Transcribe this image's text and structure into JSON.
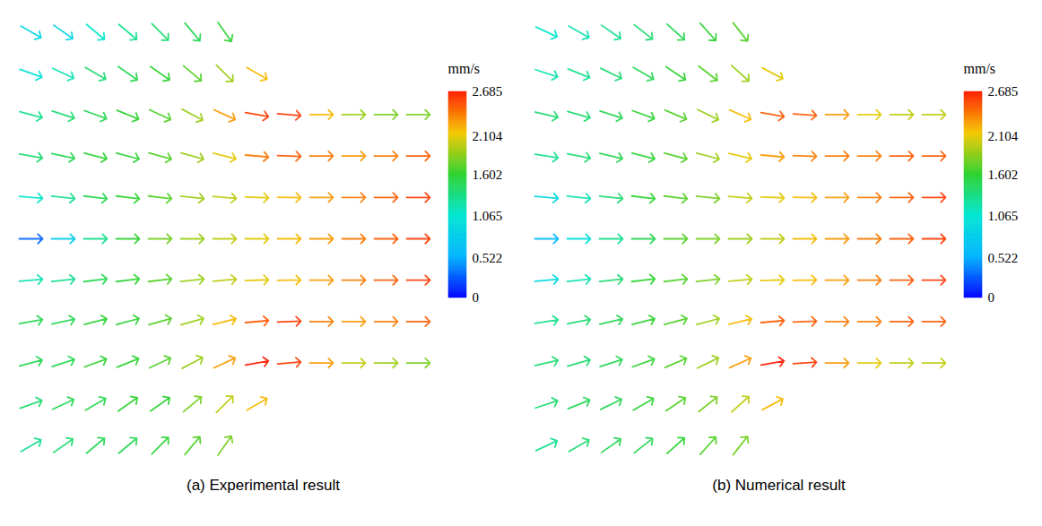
{
  "chart_data": [
    {
      "type": "vector_field",
      "title": "(a) Experimental result",
      "tick_labels": false,
      "x": [
        0.5,
        1.5,
        2.5,
        3.5,
        4.5,
        5.5,
        6.5,
        7.5,
        8.5,
        9.5,
        10.5,
        11.5,
        12.5
      ],
      "y": [
        10.5,
        9.5,
        8.5,
        7.5,
        6.5,
        5.5,
        4.5,
        3.5,
        2.5,
        1.5,
        0.5
      ],
      "xlim": [
        0,
        13
      ],
      "ylim": [
        0,
        11
      ],
      "speed": [
        [
          0.9,
          0.9,
          1.1,
          1.3,
          1.4,
          1.5,
          1.6,
          null,
          null,
          null,
          null,
          null,
          null
        ],
        [
          1.0,
          1.2,
          1.4,
          1.5,
          1.6,
          1.7,
          1.9,
          2.2,
          null,
          null,
          null,
          null,
          null
        ],
        [
          1.3,
          1.4,
          1.5,
          1.6,
          1.7,
          1.9,
          2.3,
          2.6,
          2.6,
          2.2,
          1.9,
          1.8,
          1.8
        ],
        [
          1.4,
          1.5,
          1.6,
          1.6,
          1.7,
          1.9,
          2.1,
          2.4,
          2.5,
          2.4,
          2.3,
          2.4,
          2.5
        ],
        [
          1.1,
          1.3,
          1.5,
          1.6,
          1.7,
          1.9,
          2.0,
          2.1,
          2.2,
          2.3,
          2.4,
          2.5,
          2.6
        ],
        [
          0.3,
          0.8,
          1.3,
          1.6,
          1.8,
          1.9,
          2.0,
          2.1,
          2.2,
          2.3,
          2.4,
          2.5,
          2.6
        ],
        [
          1.2,
          1.3,
          1.5,
          1.6,
          1.7,
          1.9,
          2.0,
          2.1,
          2.2,
          2.3,
          2.4,
          2.5,
          2.6
        ],
        [
          1.5,
          1.5,
          1.6,
          1.6,
          1.7,
          1.9,
          2.2,
          2.5,
          2.6,
          2.4,
          2.3,
          2.4,
          2.5
        ],
        [
          1.5,
          1.5,
          1.6,
          1.6,
          1.7,
          1.9,
          2.3,
          2.7,
          2.6,
          2.3,
          2.0,
          1.9,
          1.8
        ],
        [
          1.4,
          1.5,
          1.5,
          1.6,
          1.6,
          1.8,
          2.0,
          2.2,
          null,
          null,
          null,
          null,
          null
        ],
        [
          1.3,
          1.4,
          1.5,
          1.5,
          1.6,
          1.7,
          1.8,
          null,
          null,
          null,
          null,
          null,
          null
        ]
      ],
      "direction": [
        [
          120,
          125,
          130,
          130,
          135,
          140,
          145,
          null,
          null,
          null,
          null,
          null,
          null
        ],
        [
          110,
          115,
          120,
          125,
          125,
          130,
          135,
          120,
          null,
          null,
          null,
          null,
          null
        ],
        [
          105,
          108,
          110,
          112,
          115,
          118,
          115,
          100,
          95,
          90,
          90,
          90,
          90
        ],
        [
          100,
          102,
          104,
          105,
          106,
          106,
          104,
          95,
          92,
          90,
          90,
          90,
          90
        ],
        [
          95,
          96,
          97,
          97,
          97,
          96,
          95,
          92,
          91,
          90,
          90,
          90,
          90
        ],
        [
          90,
          90,
          90,
          90,
          90,
          90,
          90,
          90,
          90,
          90,
          90,
          90,
          90
        ],
        [
          85,
          84,
          83,
          83,
          83,
          84,
          85,
          88,
          89,
          90,
          90,
          90,
          90
        ],
        [
          80,
          78,
          76,
          75,
          74,
          74,
          76,
          85,
          88,
          90,
          90,
          90,
          90
        ],
        [
          75,
          72,
          70,
          68,
          65,
          62,
          65,
          80,
          85,
          90,
          90,
          90,
          90
        ],
        [
          70,
          65,
          60,
          55,
          55,
          50,
          45,
          60,
          null,
          null,
          null,
          null,
          null
        ],
        [
          60,
          55,
          50,
          50,
          45,
          40,
          35,
          null,
          null,
          null,
          null,
          null,
          null
        ]
      ],
      "colorbar": {
        "label": "mm/s",
        "range": [
          0,
          2.685
        ],
        "ticks": [
          0,
          0.522,
          1.065,
          1.602,
          2.104,
          2.685
        ]
      }
    },
    {
      "type": "vector_field",
      "title": "(b) Numerical result",
      "tick_labels": false,
      "x": [
        0.5,
        1.5,
        2.5,
        3.5,
        4.5,
        5.5,
        6.5,
        7.5,
        8.5,
        9.5,
        10.5,
        11.5,
        12.5
      ],
      "y": [
        10.5,
        9.5,
        8.5,
        7.5,
        6.5,
        5.5,
        4.5,
        3.5,
        2.5,
        1.5,
        0.5
      ],
      "xlim": [
        0,
        13
      ],
      "ylim": [
        0,
        11
      ],
      "speed": [
        [
          1.1,
          1.2,
          1.3,
          1.4,
          1.5,
          1.6,
          1.7,
          null,
          null,
          null,
          null,
          null,
          null
        ],
        [
          1.2,
          1.3,
          1.4,
          1.5,
          1.6,
          1.7,
          1.9,
          2.1,
          null,
          null,
          null,
          null,
          null
        ],
        [
          1.4,
          1.4,
          1.5,
          1.6,
          1.7,
          1.9,
          2.2,
          2.5,
          2.5,
          2.3,
          2.1,
          2.0,
          2.0
        ],
        [
          1.3,
          1.4,
          1.5,
          1.6,
          1.7,
          1.9,
          2.1,
          2.3,
          2.4,
          2.4,
          2.4,
          2.5,
          2.5
        ],
        [
          0.9,
          1.2,
          1.4,
          1.6,
          1.7,
          1.8,
          2.0,
          2.1,
          2.2,
          2.3,
          2.4,
          2.5,
          2.6
        ],
        [
          0.6,
          1.0,
          1.3,
          1.5,
          1.7,
          1.8,
          1.9,
          2.0,
          2.2,
          2.3,
          2.4,
          2.5,
          2.6
        ],
        [
          0.9,
          1.2,
          1.4,
          1.6,
          1.7,
          1.8,
          2.0,
          2.1,
          2.2,
          2.3,
          2.4,
          2.5,
          2.6
        ],
        [
          1.3,
          1.4,
          1.5,
          1.6,
          1.7,
          1.9,
          2.2,
          2.5,
          2.5,
          2.4,
          2.4,
          2.5,
          2.5
        ],
        [
          1.4,
          1.4,
          1.5,
          1.6,
          1.7,
          1.9,
          2.3,
          2.7,
          2.6,
          2.3,
          2.1,
          2.0,
          2.0
        ],
        [
          1.4,
          1.5,
          1.5,
          1.6,
          1.7,
          1.8,
          2.0,
          2.2,
          null,
          null,
          null,
          null,
          null
        ],
        [
          1.3,
          1.4,
          1.5,
          1.5,
          1.6,
          1.7,
          1.8,
          null,
          null,
          null,
          null,
          null,
          null
        ]
      ],
      "direction": [
        [
          115,
          120,
          125,
          128,
          132,
          138,
          142,
          null,
          null,
          null,
          null,
          null,
          null
        ],
        [
          108,
          112,
          116,
          120,
          124,
          128,
          132,
          118,
          null,
          null,
          null,
          null,
          null
        ],
        [
          103,
          106,
          108,
          110,
          113,
          116,
          114,
          100,
          94,
          90,
          90,
          90,
          90
        ],
        [
          99,
          101,
          103,
          104,
          105,
          105,
          103,
          95,
          92,
          90,
          90,
          90,
          90
        ],
        [
          95,
          96,
          96,
          97,
          97,
          96,
          95,
          92,
          91,
          90,
          90,
          90,
          90
        ],
        [
          90,
          90,
          90,
          90,
          90,
          90,
          90,
          90,
          90,
          90,
          90,
          90,
          90
        ],
        [
          85,
          84,
          84,
          83,
          83,
          84,
          85,
          88,
          89,
          90,
          90,
          90,
          90
        ],
        [
          81,
          79,
          77,
          76,
          75,
          75,
          77,
          85,
          88,
          90,
          90,
          90,
          90
        ],
        [
          77,
          74,
          72,
          70,
          67,
          64,
          66,
          80,
          86,
          90,
          90,
          90,
          90
        ],
        [
          72,
          68,
          64,
          60,
          56,
          52,
          48,
          62,
          null,
          null,
          null,
          null,
          null
        ],
        [
          65,
          60,
          55,
          52,
          48,
          42,
          38,
          null,
          null,
          null,
          null,
          null,
          null
        ]
      ],
      "colorbar": {
        "label": "mm/s",
        "range": [
          0,
          2.685
        ],
        "ticks": [
          0,
          0.522,
          1.065,
          1.602,
          2.104,
          2.685
        ]
      }
    }
  ]
}
